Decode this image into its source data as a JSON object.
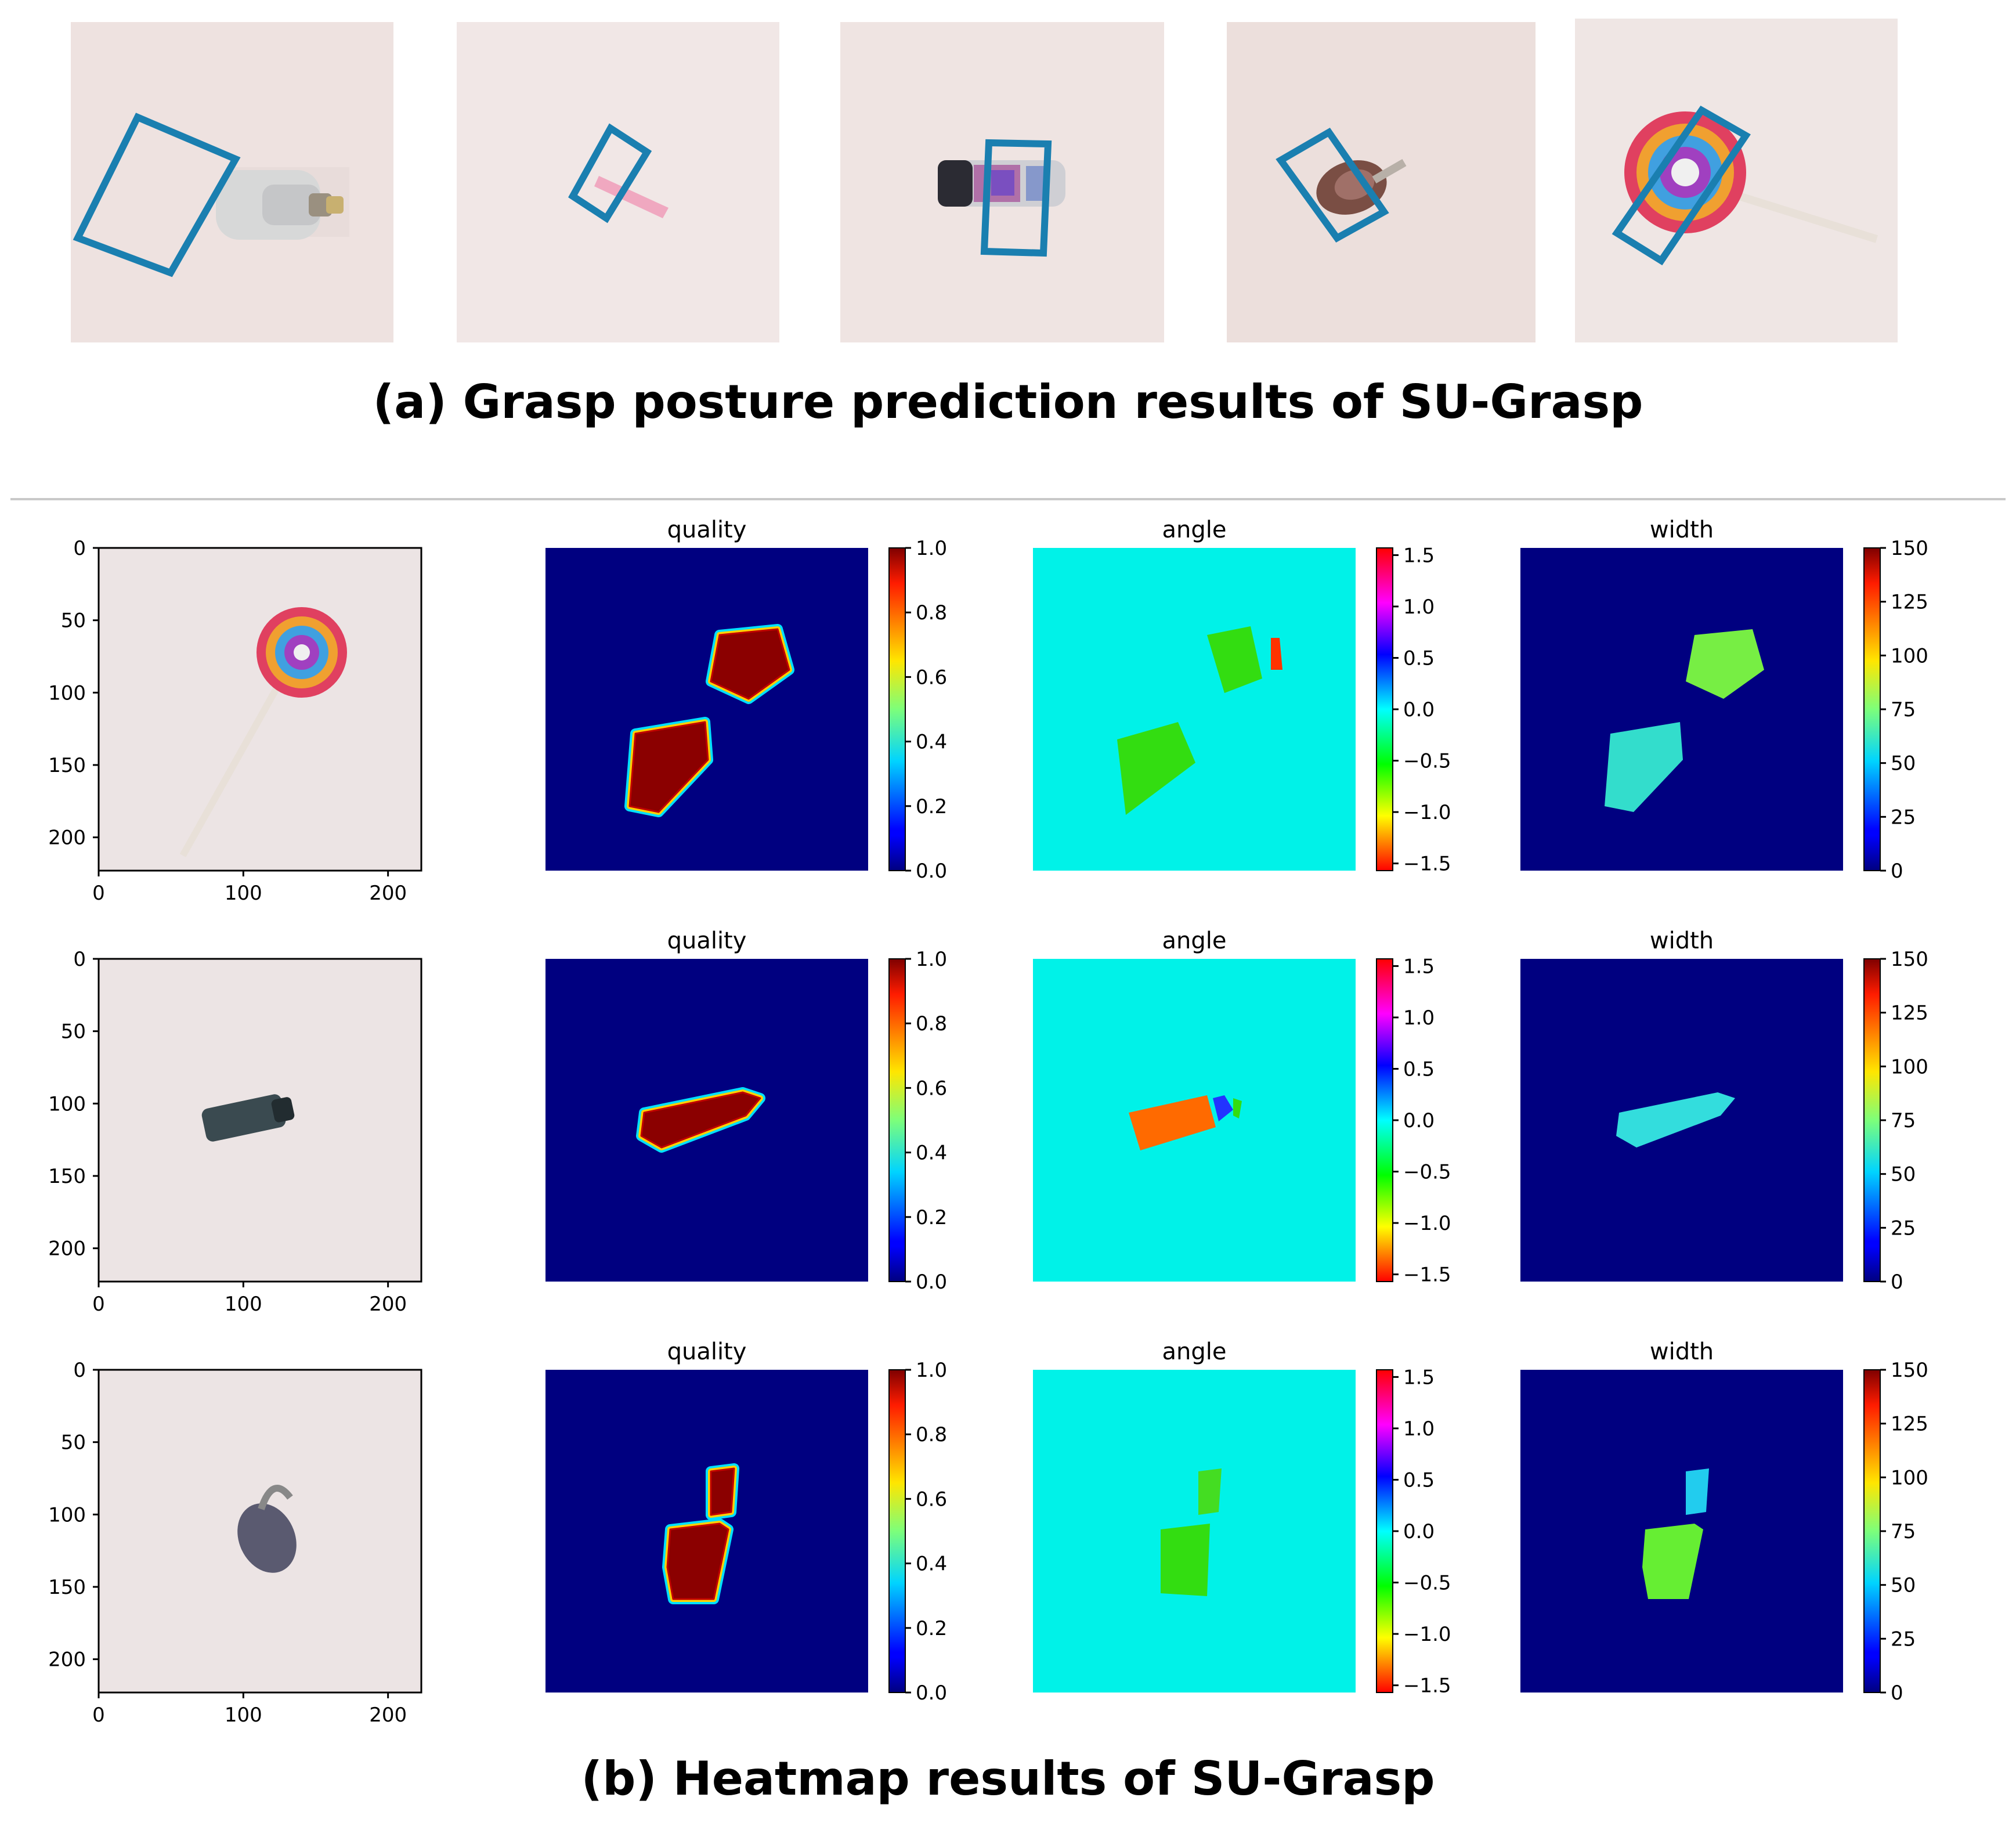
{
  "captions": {
    "a": "(a)  Grasp posture prediction results of SU-Grasp",
    "b": "(b) Heatmap results of SU-Grasp"
  },
  "part_a": {
    "photos": [
      {
        "object": "bottle",
        "grasp_box_color": "#1a7fb0"
      },
      {
        "object": "pink-stick",
        "grasp_box_color": "#1a7fb0"
      },
      {
        "object": "jar",
        "grasp_box_color": "#1a7fb0"
      },
      {
        "object": "small-object",
        "grasp_box_color": "#1a7fb0"
      },
      {
        "object": "lollipop",
        "grasp_box_color": "#1a7fb0"
      }
    ]
  },
  "chart_data": [
    {
      "type": "heatmap",
      "rows": [
        {
          "object": "lollipop"
        },
        {
          "object": "bottle"
        },
        {
          "object": "padlock"
        }
      ],
      "photo_axes": {
        "x_ticks": [
          "0",
          "100",
          "200"
        ],
        "y_ticks": [
          "0",
          "50",
          "100",
          "150",
          "200"
        ]
      },
      "panels": [
        {
          "title": "quality",
          "colorbar_ticks": [
            "1.0",
            "0.8",
            "0.6",
            "0.4",
            "0.2",
            "0.0"
          ],
          "range": [
            0.0,
            1.0
          ],
          "colormap": "jet",
          "background_color": "#000080"
        },
        {
          "title": "angle",
          "colorbar_ticks": [
            "1.5",
            "1.0",
            "0.5",
            "0.0",
            "−0.5",
            "−1.0",
            "−1.5"
          ],
          "range": [
            -1.57,
            1.57
          ],
          "colormap": "hsv",
          "background_color": "#00f2e8"
        },
        {
          "title": "width",
          "colorbar_ticks": [
            "150",
            "125",
            "100",
            "75",
            "50",
            "25",
            "0"
          ],
          "range": [
            0,
            150
          ],
          "colormap": "jet",
          "background_color": "#000080"
        }
      ]
    }
  ]
}
